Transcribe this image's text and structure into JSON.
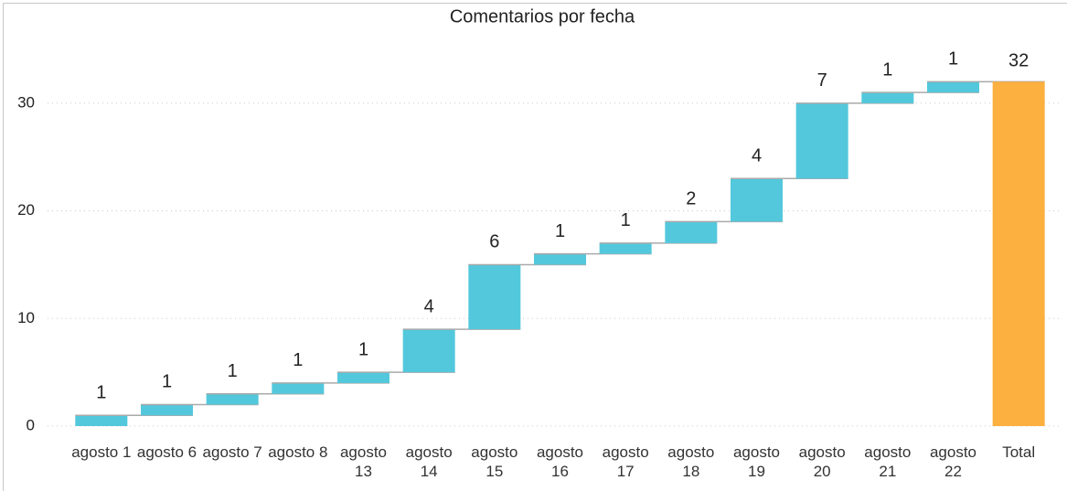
{
  "chart_data": {
    "type": "waterfall",
    "title": "Comentarios por fecha",
    "categories": [
      "agosto 1",
      "agosto 6",
      "agosto 7",
      "agosto 8",
      "agosto 13",
      "agosto 14",
      "agosto 15",
      "agosto 16",
      "agosto 17",
      "agosto 18",
      "agosto 19",
      "agosto 20",
      "agosto 21",
      "agosto 22"
    ],
    "values": [
      1,
      1,
      1,
      1,
      1,
      4,
      6,
      1,
      1,
      2,
      4,
      7,
      1,
      1
    ],
    "color": "#53c8dc",
    "total": {
      "label": "Total",
      "value": 32,
      "color": "#fcb040"
    },
    "ylim": [
      0,
      33
    ],
    "yticks": [
      0,
      10,
      20,
      30
    ],
    "grid": true
  }
}
